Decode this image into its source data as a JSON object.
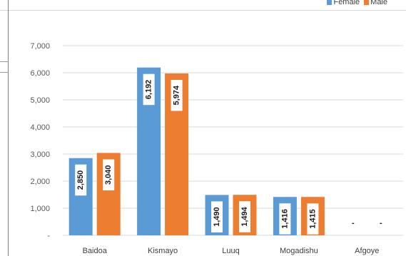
{
  "header": {
    "text": ""
  },
  "legend": {
    "items": [
      {
        "label": "Female",
        "color": "#5b9bd5"
      },
      {
        "label": "Male",
        "color": "#ed7d31"
      }
    ]
  },
  "chart_data": {
    "type": "bar",
    "title": "",
    "xlabel": "",
    "ylabel": "",
    "categories": [
      "Baidoa",
      "Kismayo",
      "Luuq",
      "Mogadishu",
      "Afgoye"
    ],
    "series": [
      {
        "name": "Female",
        "color": "#5b9bd5",
        "values": [
          2850,
          6192,
          1490,
          1416,
          0
        ],
        "labels": [
          "2,850",
          "6,192",
          "1,490",
          "1,416",
          "-"
        ]
      },
      {
        "name": "Male",
        "color": "#ed7d31",
        "values": [
          3040,
          5974,
          1494,
          1415,
          0
        ],
        "labels": [
          "3,040",
          "5,974",
          "1,494",
          "1,415",
          "-"
        ]
      }
    ],
    "ylim": [
      0,
      7000
    ],
    "yticks": [
      0,
      1000,
      2000,
      3000,
      4000,
      5000,
      6000,
      7000
    ],
    "ytick_labels": [
      "-",
      "1,000",
      "2,000",
      "3,000",
      "4,000",
      "5,000",
      "6,000",
      "7,000"
    ],
    "grid": true,
    "legend_position": "top-right"
  }
}
